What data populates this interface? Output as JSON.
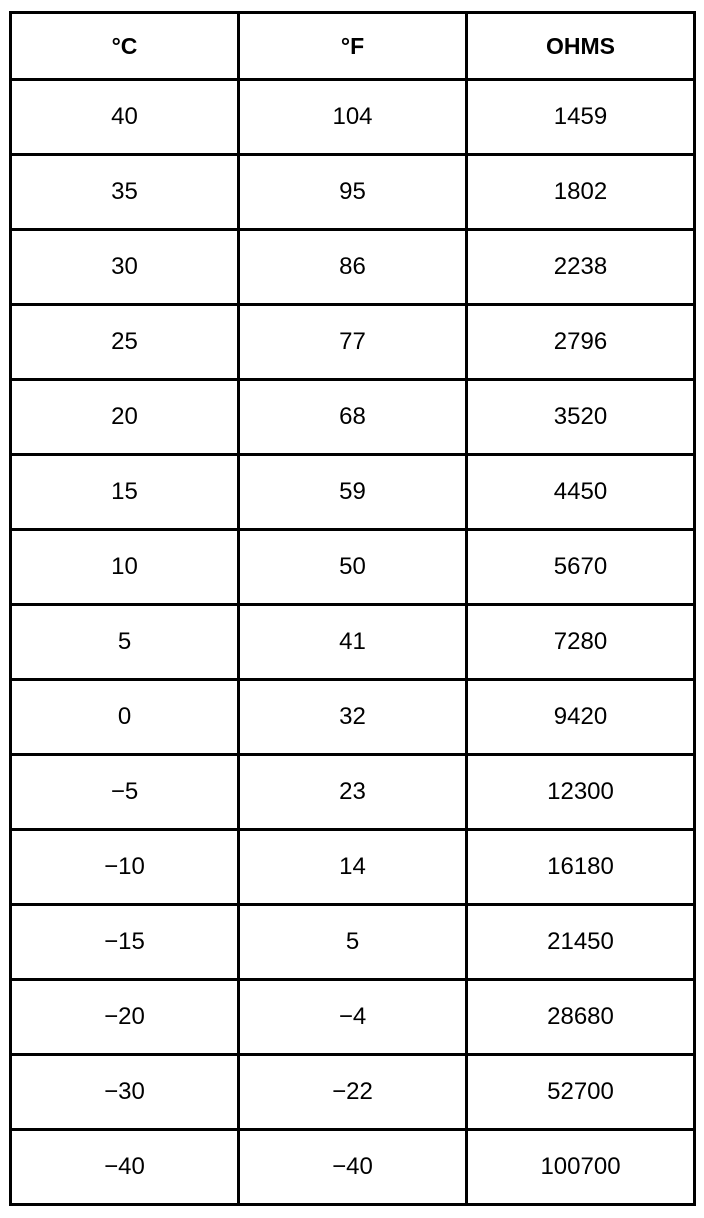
{
  "table": {
    "header": [
      "°C",
      "°F",
      "OHMS"
    ],
    "rows": [
      [
        "40",
        "104",
        "1459"
      ],
      [
        "35",
        "95",
        "1802"
      ],
      [
        "30",
        "86",
        "2238"
      ],
      [
        "25",
        "77",
        "2796"
      ],
      [
        "20",
        "68",
        "3520"
      ],
      [
        "15",
        "59",
        "4450"
      ],
      [
        "10",
        "50",
        "5670"
      ],
      [
        "5",
        "41",
        "7280"
      ],
      [
        "0",
        "32",
        "9420"
      ],
      [
        "−5",
        "23",
        "12300"
      ],
      [
        "−10",
        "14",
        "16180"
      ],
      [
        "−15",
        "5",
        "21450"
      ],
      [
        "−20",
        "−4",
        "28680"
      ],
      [
        "−30",
        "−22",
        "52700"
      ],
      [
        "−40",
        "−40",
        "100700"
      ]
    ]
  }
}
